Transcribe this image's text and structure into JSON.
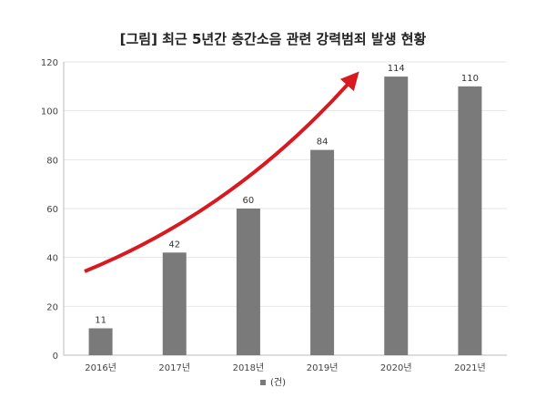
{
  "chart_data": {
    "type": "bar",
    "title": "[그림] 최근 5년간 층간소음 관련 강력범죄 발생 현황",
    "categories": [
      "2016년",
      "2017년",
      "2018년",
      "2019년",
      "2020년",
      "2021년"
    ],
    "series": [
      {
        "name": "(건)",
        "values": [
          11,
          42,
          60,
          84,
          114,
          110
        ]
      }
    ],
    "xlabel": "",
    "ylabel": "",
    "ylim": [
      0,
      120
    ],
    "yticks": [
      0,
      20,
      40,
      60,
      80,
      100,
      120
    ],
    "grid": true,
    "legend": "bottom",
    "annotations": [
      "red upward trend arrow"
    ],
    "colors": {
      "bar": "#7a7a7a",
      "arrow": "#d71920",
      "grid": "#e6e6e6"
    }
  }
}
